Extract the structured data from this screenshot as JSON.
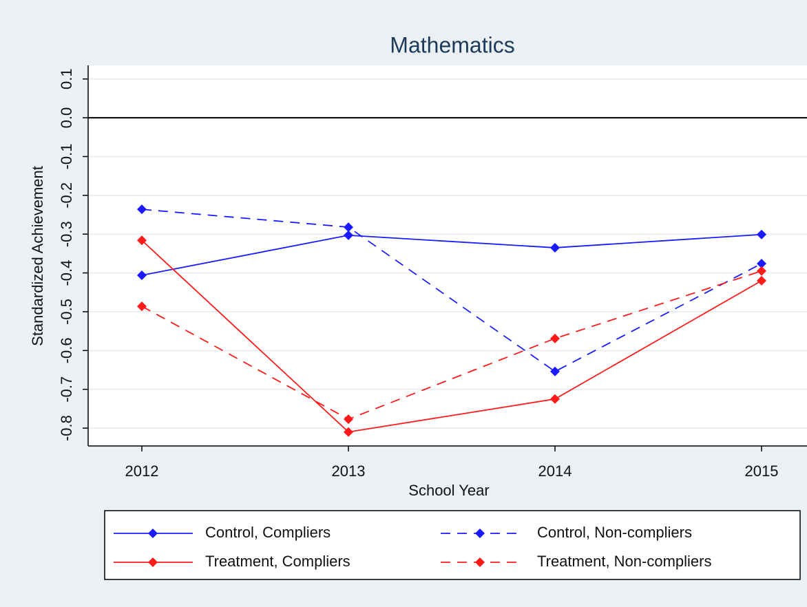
{
  "chart_data": {
    "type": "line",
    "title": "Mathematics",
    "x_label": "School Year",
    "y_label": "Standardized Achievement",
    "x": [
      2012,
      2013,
      2014,
      2015
    ],
    "xlim": [
      2011.74,
      2015.22
    ],
    "xticks": [
      2012,
      2013,
      2014,
      2015
    ],
    "ylim": [
      -0.846,
      0.135
    ],
    "yticks": [
      0.1,
      {
        "value": 0,
        "label": "0.0"
      },
      -0.1,
      -0.2,
      -0.3,
      -0.4,
      -0.5,
      -0.6,
      -0.7,
      -0.8
    ],
    "grid": true,
    "reference_line": 0,
    "series": [
      {
        "name": "Control, Compliers",
        "color": "#1a1aff",
        "line_style": "solid",
        "values": [
          -0.406,
          -0.303,
          -0.335,
          -0.301
        ]
      },
      {
        "name": "Control, Non-compliers",
        "color": "#1a1aff",
        "line_style": "dashed",
        "values": [
          -0.236,
          -0.282,
          -0.654,
          -0.376
        ]
      },
      {
        "name": "Treatment, Compliers",
        "color": "#ff1a1a",
        "line_style": "solid",
        "values": [
          -0.316,
          -0.81,
          -0.725,
          -0.42
        ]
      },
      {
        "name": "Treatment, Non-compliers",
        "color": "#ff1a1a",
        "line_style": "dashed",
        "values": [
          -0.486,
          -0.777,
          -0.569,
          -0.395
        ]
      }
    ]
  }
}
